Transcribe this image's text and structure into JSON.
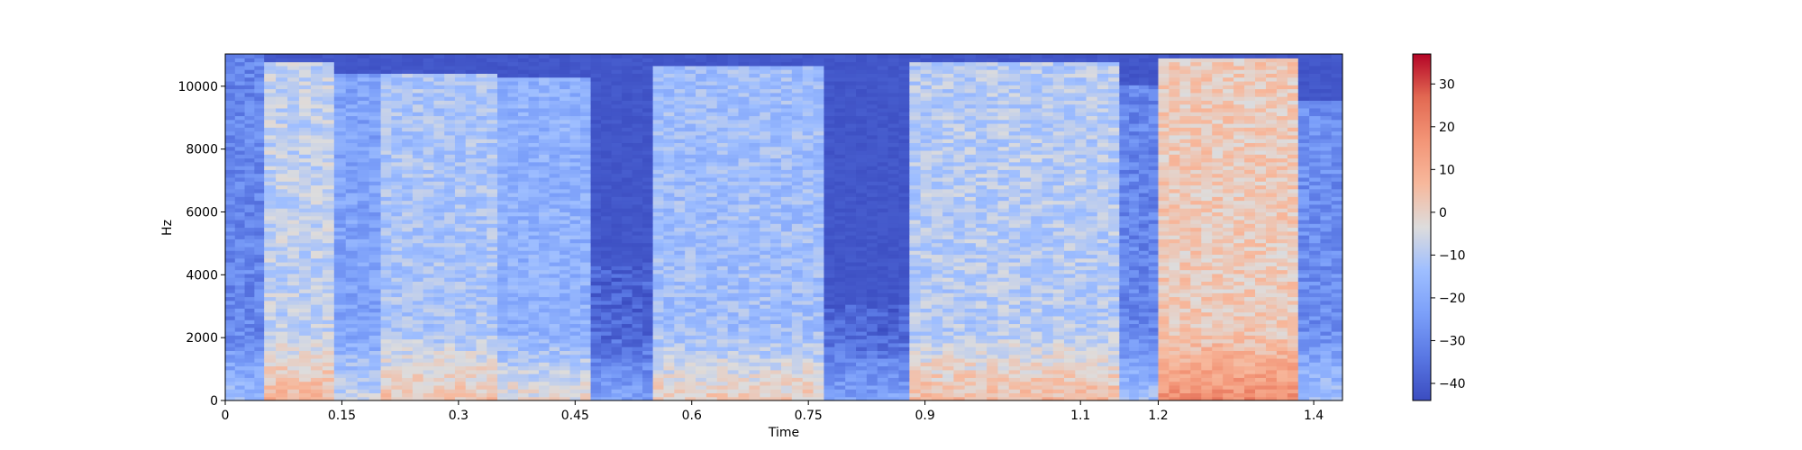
{
  "chart_data": {
    "type": "heatmap",
    "title": "",
    "xlabel": "Time",
    "ylabel": "Hz",
    "xlim": [
      0,
      1.437
    ],
    "ylim": [
      0,
      11025
    ],
    "x_ticks": [
      0,
      0.15,
      0.3,
      0.45,
      0.6,
      0.75,
      0.9,
      1.1,
      1.2,
      1.4
    ],
    "x_tick_labels": [
      "0",
      "0.15",
      "0.3",
      "0.45",
      "0.6",
      "0.75",
      "0.9",
      "1.1",
      "1.2",
      "1.4"
    ],
    "y_ticks": [
      0,
      2000,
      4000,
      6000,
      8000,
      10000
    ],
    "y_tick_labels": [
      "0",
      "2000",
      "4000",
      "6000",
      "8000",
      "10000"
    ],
    "colorbar": {
      "range": [
        -44,
        37
      ],
      "ticks": [
        -40,
        -30,
        -20,
        -10,
        0,
        10,
        20,
        30
      ],
      "tick_labels": [
        "−40",
        "−30",
        "−20",
        "−10",
        "0",
        "10",
        "20",
        "30"
      ],
      "colormap": "coolwarm"
    },
    "segments": [
      {
        "t0": 0.0,
        "t1": 0.05,
        "level": -30,
        "band_hz": 11025
      },
      {
        "t0": 0.05,
        "t1": 0.14,
        "level": -8,
        "band_hz": 10700
      },
      {
        "t0": 0.14,
        "t1": 0.2,
        "level": -22,
        "band_hz": 10300
      },
      {
        "t0": 0.2,
        "t1": 0.35,
        "level": -12,
        "band_hz": 10400
      },
      {
        "t0": 0.35,
        "t1": 0.47,
        "level": -18,
        "band_hz": 10200
      },
      {
        "t0": 0.47,
        "t1": 0.55,
        "level": -38,
        "band_hz": 4300
      },
      {
        "t0": 0.55,
        "t1": 0.77,
        "level": -14,
        "band_hz": 10600
      },
      {
        "t0": 0.77,
        "t1": 0.88,
        "level": -38,
        "band_hz": 3000
      },
      {
        "t0": 0.88,
        "t1": 1.15,
        "level": -10,
        "band_hz": 10700
      },
      {
        "t0": 1.15,
        "t1": 1.2,
        "level": -30,
        "band_hz": 10000
      },
      {
        "t0": 1.2,
        "t1": 1.38,
        "level": 2,
        "band_hz": 10800
      },
      {
        "t0": 1.38,
        "t1": 1.437,
        "level": -28,
        "band_hz": 9500
      }
    ]
  }
}
